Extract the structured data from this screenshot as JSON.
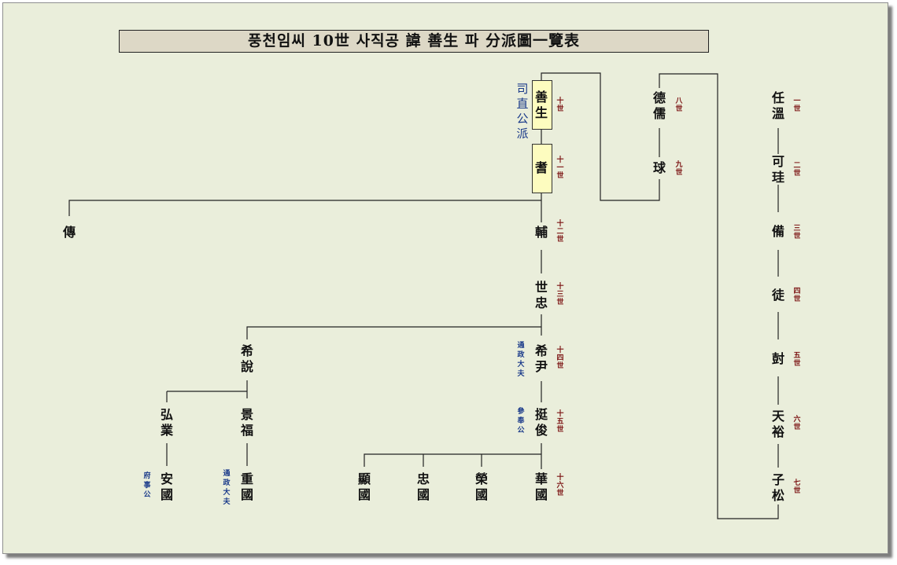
{
  "title": "풍천임씨 10世 사직공 諱 善生 파 分派圖一覽表",
  "branch_label": "司直公派",
  "people": {
    "ren_on": "任\n溫",
    "ka_gyu": "可\n珪",
    "bi": "備",
    "do": "徒",
    "jeon": "尌",
    "cheon_yu": "天\n裕",
    "ja_song": "子\n松",
    "deok_yu": "德\n儒",
    "gu": "球",
    "seon_saeng": "善\n生",
    "gi": "耆",
    "bo": "輔",
    "jeon_left": "傳",
    "se_chung": "世\n忠",
    "hui_yun": "希\n尹",
    "hui_yeol": "希\n說",
    "jeong_jun": "挺\n俊",
    "hong_eop": "弘\n業",
    "gyeong_bok": "景\n福",
    "an_guk": "安\n國",
    "jung_guk": "重\n國",
    "hyeon_guk": "顯\n國",
    "chung_guk": "忠\n國",
    "yeong_guk": "榮\n國",
    "hwa_guk": "華\n國"
  },
  "generations": {
    "g1": "一\n世",
    "g2": "二\n世",
    "g3": "三\n世",
    "g4": "四\n世",
    "g5": "五\n世",
    "g6": "六\n世",
    "g7": "七\n世",
    "g8": "八\n世",
    "g9": "九\n世",
    "g10": "十\n世",
    "g11": "十\n一\n世",
    "g12": "十\n二\n世",
    "g13": "十\n三\n世",
    "g14": "十\n四\n世",
    "g15": "十\n五\n世",
    "g16": "十\n六\n世"
  },
  "titles": {
    "tongjeong_a": "通\n政\n大\n夫",
    "chambong": "參\n奉\n公",
    "busa": "府\n事\n公",
    "tongjeong_b": "通\n政\n大\n夫"
  }
}
